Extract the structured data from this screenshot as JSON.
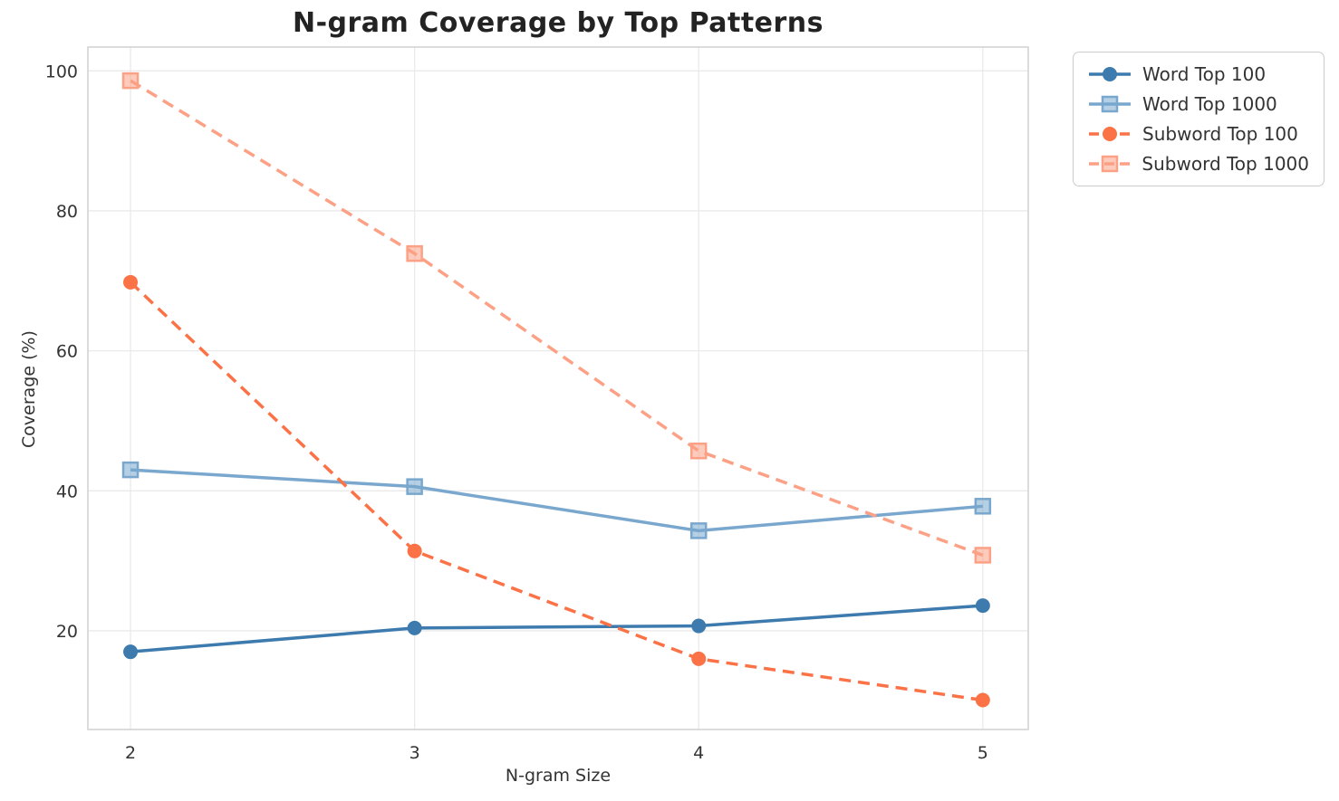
{
  "chart_data": {
    "type": "line",
    "title": "N-gram Coverage by Top Patterns",
    "xlabel": "N-gram Size",
    "ylabel": "Coverage (%)",
    "x": [
      2,
      3,
      4,
      5
    ],
    "xtick_labels": [
      "2",
      "3",
      "4",
      "5"
    ],
    "ytick_values": [
      20,
      40,
      60,
      80,
      100
    ],
    "ytick_labels": [
      "20",
      "40",
      "60",
      "80",
      "100"
    ],
    "xlim": [
      1.85,
      5.16
    ],
    "ylim": [
      5.9,
      103.4
    ],
    "grid": true,
    "legend_position": "outside-upper-right",
    "series": [
      {
        "name": "Word Top 100",
        "values": [
          17.0,
          20.4,
          20.7,
          23.6
        ],
        "color": "#3d7aad",
        "linestyle": "solid",
        "marker": "circle"
      },
      {
        "name": "Word Top 1000",
        "values": [
          43.0,
          40.6,
          34.3,
          37.8
        ],
        "color": "#79a7ce",
        "linestyle": "solid",
        "marker": "square"
      },
      {
        "name": "Subword Top 100",
        "values": [
          69.8,
          31.4,
          16.0,
          10.1
        ],
        "color": "#fb7247",
        "linestyle": "dashed",
        "marker": "circle"
      },
      {
        "name": "Subword Top 1000",
        "values": [
          98.6,
          73.9,
          45.7,
          30.8
        ],
        "color": "#fca185",
        "linestyle": "dashed",
        "marker": "square"
      }
    ],
    "colors": {
      "grid": "#eaeaea",
      "spine": "#d0d0d0",
      "tick_text": "#333333",
      "title_text": "#232323"
    }
  }
}
